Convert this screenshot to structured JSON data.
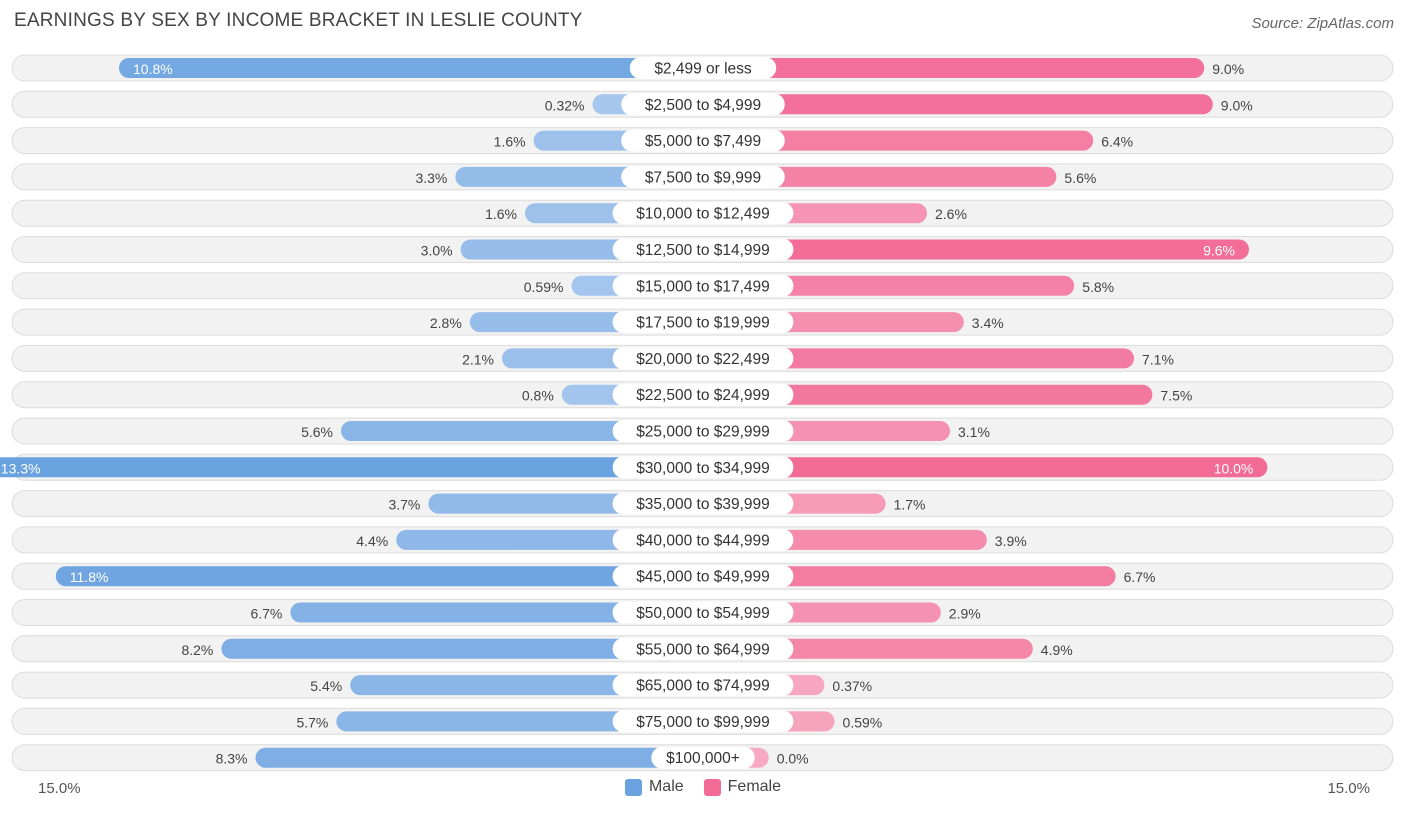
{
  "header": {
    "title": "EARNINGS BY SEX BY INCOME BRACKET IN LESLIE COUNTY",
    "source": "Source: ZipAtlas.com"
  },
  "axis": {
    "left_label": "15.0%",
    "right_label": "15.0%"
  },
  "legend": {
    "male": "Male",
    "female": "Female"
  },
  "colors": {
    "male_strong": "#6aa2e0",
    "male_light": "#a9c8ee",
    "female_strong": "#f26b97",
    "female_light": "#f7a9c3"
  },
  "chart_data": {
    "type": "bar",
    "orientation": "horizontal-diverging",
    "title": "EARNINGS BY SEX BY INCOME BRACKET IN LESLIE COUNTY",
    "xlim": [
      -15,
      15
    ],
    "categories": [
      "$2,499 or less",
      "$2,500 to $4,999",
      "$5,000 to $7,499",
      "$7,500 to $9,999",
      "$10,000 to $12,499",
      "$12,500 to $14,999",
      "$15,000 to $17,499",
      "$17,500 to $19,999",
      "$20,000 to $22,499",
      "$22,500 to $24,999",
      "$25,000 to $29,999",
      "$30,000 to $34,999",
      "$35,000 to $39,999",
      "$40,000 to $44,999",
      "$45,000 to $49,999",
      "$50,000 to $54,999",
      "$55,000 to $64,999",
      "$65,000 to $74,999",
      "$75,000 to $99,999",
      "$100,000+"
    ],
    "series": [
      {
        "name": "Male",
        "values": [
          10.8,
          0.32,
          1.6,
          3.3,
          1.6,
          3.0,
          0.59,
          2.8,
          2.1,
          0.8,
          5.6,
          13.3,
          3.7,
          4.4,
          11.8,
          6.7,
          8.2,
          5.4,
          5.7,
          8.3
        ],
        "labels": [
          "10.8%",
          "0.32%",
          "1.6%",
          "3.3%",
          "1.6%",
          "3.0%",
          "0.59%",
          "2.8%",
          "2.1%",
          "0.8%",
          "5.6%",
          "13.3%",
          "3.7%",
          "4.4%",
          "11.8%",
          "6.7%",
          "8.2%",
          "5.4%",
          "5.7%",
          "8.3%"
        ]
      },
      {
        "name": "Female",
        "values": [
          9.0,
          9.0,
          6.4,
          5.6,
          2.6,
          9.6,
          5.8,
          3.4,
          7.1,
          7.5,
          3.1,
          10.0,
          1.7,
          3.9,
          6.7,
          2.9,
          4.9,
          0.37,
          0.59,
          0.0
        ],
        "labels": [
          "9.0%",
          "9.0%",
          "6.4%",
          "5.6%",
          "2.6%",
          "9.6%",
          "5.8%",
          "3.4%",
          "7.1%",
          "7.5%",
          "3.1%",
          "10.0%",
          "1.7%",
          "3.9%",
          "6.7%",
          "2.9%",
          "4.9%",
          "0.37%",
          "0.59%",
          "0.0%"
        ]
      }
    ]
  }
}
